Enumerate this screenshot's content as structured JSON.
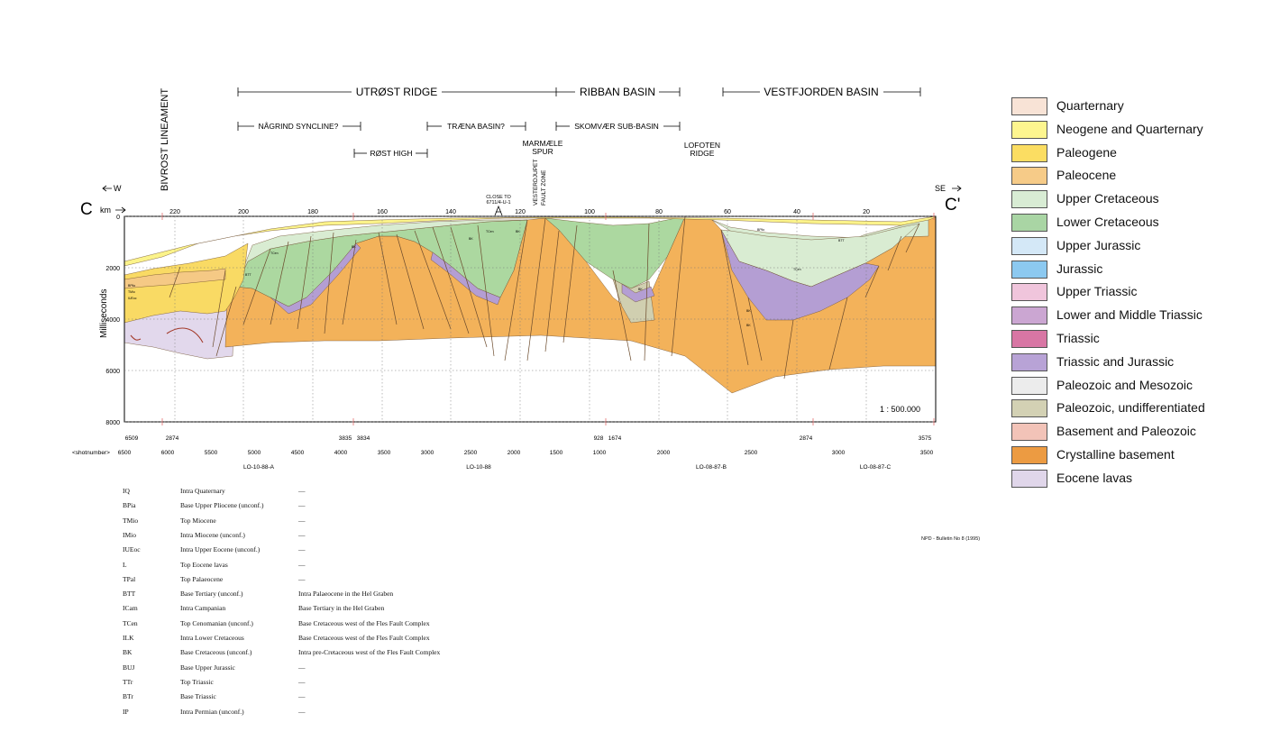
{
  "section": {
    "left_letter": "C",
    "right_letter": "C'",
    "km_label": "km",
    "west_label": "W",
    "east_label": "SE",
    "yaxis_label": "Milliseconds",
    "scale": "1 : 500.000",
    "km_ticks": [
      "220",
      "200",
      "180",
      "160",
      "140",
      "120",
      "100",
      "80",
      "60",
      "40",
      "20"
    ],
    "ms_ticks": [
      "0",
      "2000",
      "4000",
      "6000",
      "8000"
    ],
    "shot_label": "<shotnumber>",
    "shot_row_upper": [
      "6509",
      "2874",
      "3835",
      "3834",
      "928",
      "1674",
      "2874",
      "3575"
    ],
    "shot_row_lower": [
      "6500",
      "6000",
      "5500",
      "5000",
      "4500",
      "4000",
      "3500",
      "3000",
      "2500",
      "2000",
      "1500",
      "1000",
      "2000",
      "2500",
      "3000",
      "3500"
    ],
    "line_names": [
      "LO-10-88-A",
      "LO-10-88",
      "LO-08-87-B",
      "LO-08-87-C"
    ]
  },
  "structures": {
    "lineament": "BIVROST LINEAMENT",
    "utrost_ridge": "UTRØST RIDGE",
    "ribban_basin": "RIBBAN BASIN",
    "vestfjorden_basin": "VESTFJORDEN BASIN",
    "nagrind_syncline": "NÅGRIND SYNCLINE?",
    "traena_basin": "TRÆNA BASIN?",
    "skomvaer": "SKOMVÆR SUB-BASIN",
    "rost_high": "RØST HIGH",
    "marmaele_1": "MARMÆLE",
    "marmaele_2": "SPUR",
    "lofoten_1": "LOFOTEN",
    "lofoten_2": "RIDGE",
    "vesterdjupet_1": "VESTERDJUPET",
    "vesterdjupet_2": "FAULT ZONE",
    "well_1": "CLOSE TO",
    "well_2": "6711/4-U-1"
  },
  "horizon_labels": [
    "BPlio",
    "TMio",
    "IUEoc",
    "BTT",
    "TCen",
    "BK",
    "TCen",
    "BK",
    "BK",
    "BPlio",
    "BTT",
    "TCen",
    "BK",
    "BK",
    "BK"
  ],
  "legend": [
    {
      "label": "Quarternary",
      "color": "#f8e3d6"
    },
    {
      "label": "Neogene and Quarternary",
      "color": "#fdf58f"
    },
    {
      "label": "Paleogene",
      "color": "#fbdd62"
    },
    {
      "label": "Paleocene",
      "color": "#f6cb88"
    },
    {
      "label": "Upper Cretaceous",
      "color": "#d8ecd4"
    },
    {
      "label": "Lower Cretaceous",
      "color": "#a9d5a4"
    },
    {
      "label": "Upper Jurassic",
      "color": "#d4e8f7"
    },
    {
      "label": "Jurassic",
      "color": "#8cc9f0"
    },
    {
      "label": "Upper Triassic",
      "color": "#f0c5dc"
    },
    {
      "label": "Lower and Middle Triassic",
      "color": "#cba6d2"
    },
    {
      "label": "Triassic",
      "color": "#d876a4"
    },
    {
      "label": "Triassic and Jurassic",
      "color": "#b8a3d6"
    },
    {
      "label": "Paleozoic and Mesozoic",
      "color": "#ececec"
    },
    {
      "label": "Paleozoic, undifferentiated",
      "color": "#d3d1b4"
    },
    {
      "label": "Basement and Paleozoic",
      "color": "#f2c3b8"
    },
    {
      "label": "Crystalline basement",
      "color": "#ec9b42"
    },
    {
      "label": "Eocene lavas",
      "color": "#e0d6ea"
    }
  ],
  "fill_colors": {
    "basement": "#f3b25a",
    "upper_cretaceous": "#d9ecd2",
    "lower_cretaceous": "#acd8a0",
    "triassic_jurassic": "#b49ed3",
    "paleozoic": "#d0cfb0",
    "neogene": "#fbf38a",
    "paleogene": "#f9da64",
    "paleocene": "#f5c985",
    "eocene_lavas": "#e2d8ec",
    "fault": "#6b4a2b",
    "lava_red": "#a33a2a"
  },
  "horizon_key": [
    {
      "code": "IQ",
      "desc": "Intra Quaternary",
      "note": "—"
    },
    {
      "code": "BPia",
      "desc": "Base Upper Pliocene (unconf.)",
      "note": "—"
    },
    {
      "code": "TMio",
      "desc": "Top Miocene",
      "note": "—"
    },
    {
      "code": "IMio",
      "desc": "Intra Miocene (unconf.)",
      "note": "—"
    },
    {
      "code": "IUEoc",
      "desc": "Intra Upper Eocene (unconf.)",
      "note": "—"
    },
    {
      "code": "L",
      "desc": "Top Eocene lavas",
      "note": "—"
    },
    {
      "code": "TPal",
      "desc": "Top Palaeocene",
      "note": "—"
    },
    {
      "code": "BTT",
      "desc": "Base Tertiary (unconf.)",
      "note": "Intra Palaeocene in the Hel Graben"
    },
    {
      "code": "ICam",
      "desc": "Intra Campanian",
      "note": "Base Tertiary in the Hel Graben"
    },
    {
      "code": "TCen",
      "desc": "Top Cenomanian (unconf.)",
      "note": "Base Cretaceous west of the Fles Fault Complex"
    },
    {
      "code": "ILK",
      "desc": "Intra Lower Cretaceous",
      "note": "Base Cretaceous west of the Fles Fault Complex"
    },
    {
      "code": "BK",
      "desc": "Base Cretaceous (unconf.)",
      "note": "Intra pre-Cretaceous west of the Fles Fault Complex"
    },
    {
      "code": "BUJ",
      "desc": "Base Upper Jurassic",
      "note": "—"
    },
    {
      "code": "TTr",
      "desc": "Top Triassic",
      "note": "—"
    },
    {
      "code": "BTr",
      "desc": "Base Triassic",
      "note": "—"
    },
    {
      "code": "IP",
      "desc": "Intra Permian (unconf.)",
      "note": "—"
    }
  ],
  "source_note": "NPD - Bulletin No 8 (1995)"
}
